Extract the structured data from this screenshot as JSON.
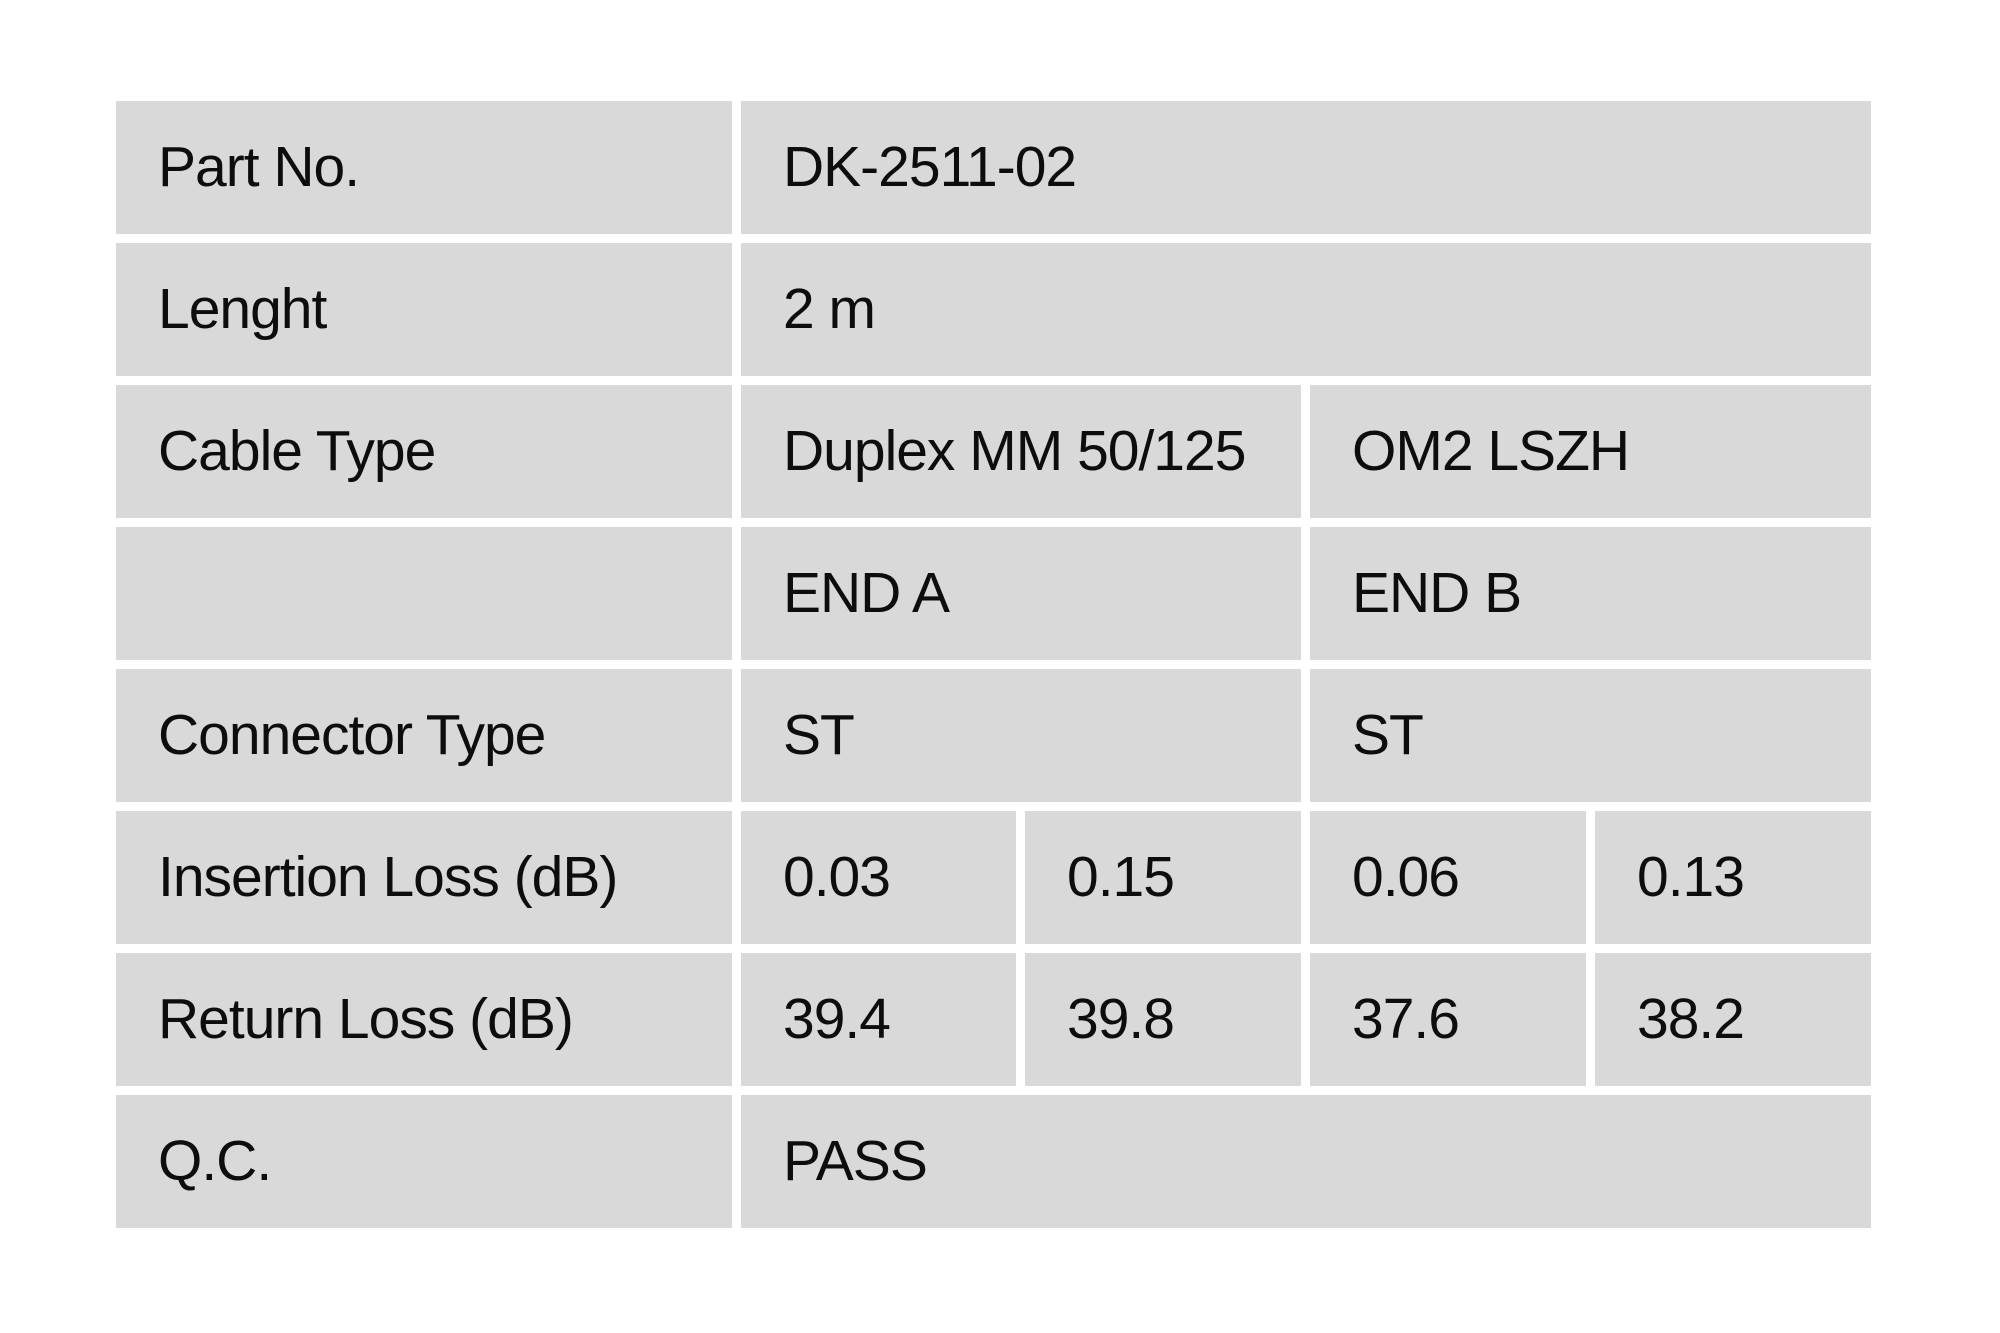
{
  "page": {
    "background_color": "#ffffff"
  },
  "table": {
    "cell_bg": "#d9d9d9",
    "text_color": "#0d0d0d",
    "rows": [
      {
        "label": "Part No.",
        "values": [
          "DK-2511-02"
        ]
      },
      {
        "label": "Lenght",
        "values": [
          "2 m"
        ]
      },
      {
        "label": "Cable Type",
        "values": [
          "Duplex MM 50/125",
          "OM2 LSZH"
        ]
      },
      {
        "label": "",
        "values": [
          "END A",
          "END B"
        ]
      },
      {
        "label": "Connector Type",
        "values": [
          "ST",
          "ST"
        ]
      },
      {
        "label": "Insertion Loss (dB)",
        "values": [
          "0.03",
          "0.15",
          "0.06",
          "0.13"
        ]
      },
      {
        "label": "Return Loss (dB)",
        "values": [
          "39.4",
          "39.8",
          "37.6",
          "38.2"
        ]
      },
      {
        "label": "Q.C.",
        "values": [
          "PASS"
        ]
      }
    ]
  }
}
